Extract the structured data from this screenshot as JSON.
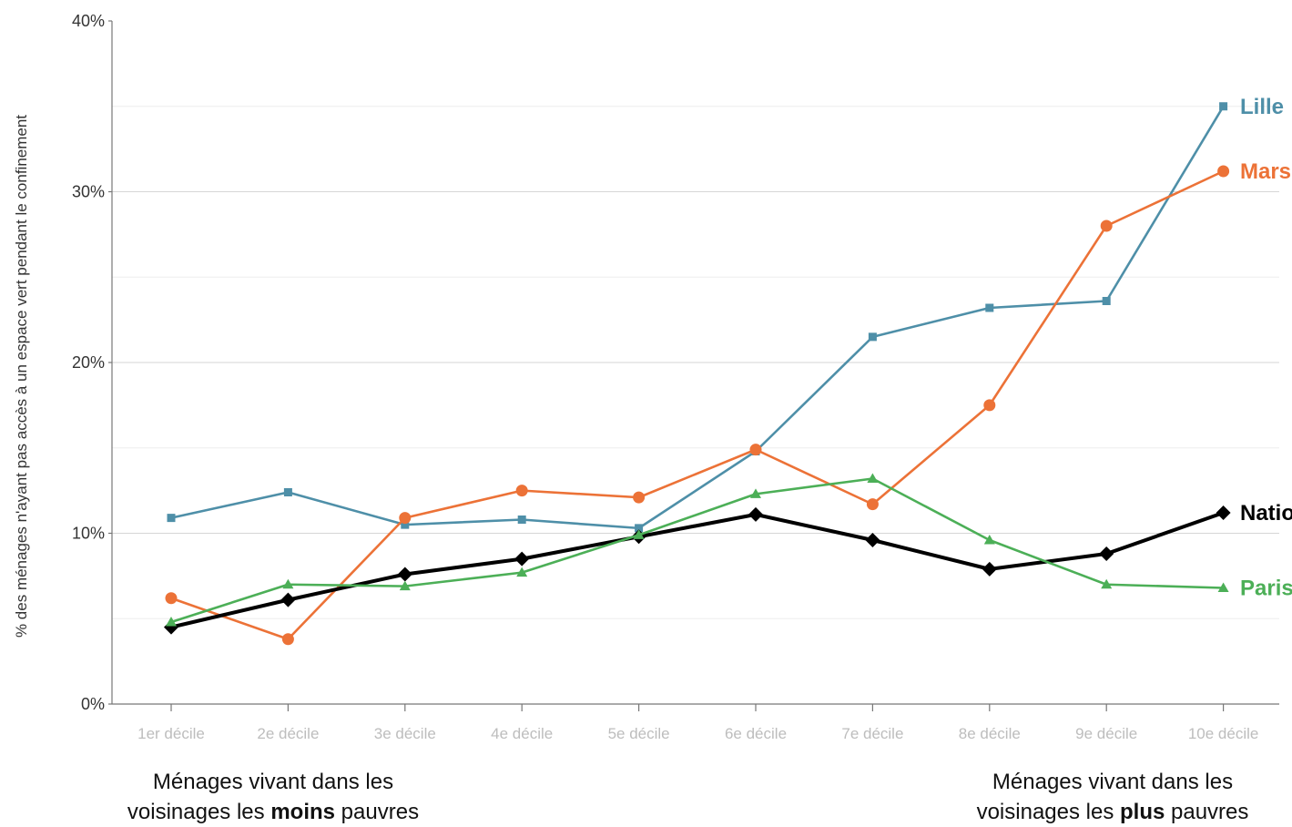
{
  "chart_data": {
    "type": "line",
    "ylabel": "% des ménages n'ayant pas accès à un espace vert pendant le confinement",
    "ylim": [
      0,
      40
    ],
    "yticks": [
      "0%",
      "10%",
      "20%",
      "30%",
      "40%"
    ],
    "categories": [
      "1er décile",
      "2e décile",
      "3e décile",
      "4e décile",
      "5e décile",
      "6e décile",
      "7e décile",
      "8e décile",
      "9e décile",
      "10e décile"
    ],
    "grid": true,
    "series": [
      {
        "name": "Lille",
        "color": "#4e8fa8",
        "marker": "square",
        "values": [
          10.9,
          12.4,
          10.5,
          10.8,
          10.3,
          14.8,
          21.5,
          23.2,
          23.6,
          35.0
        ]
      },
      {
        "name": "Mars",
        "color": "#ec7237",
        "marker": "circle",
        "values": [
          6.2,
          3.8,
          10.9,
          12.5,
          12.1,
          14.9,
          11.7,
          17.5,
          28.0,
          31.2
        ]
      },
      {
        "name": "Natio",
        "color": "#000000",
        "marker": "diamond",
        "values": [
          4.5,
          6.1,
          7.6,
          8.5,
          9.8,
          11.1,
          9.6,
          7.9,
          8.8,
          11.2
        ]
      },
      {
        "name": "Paris",
        "color": "#4caf57",
        "marker": "triangle",
        "values": [
          4.8,
          7.0,
          6.9,
          7.7,
          9.9,
          12.3,
          13.2,
          9.6,
          7.0,
          6.8
        ]
      }
    ]
  },
  "annotations": {
    "left": {
      "line1": "Ménages vivant dans les",
      "line2_prefix": "voisinages les ",
      "line2_bold": "moins",
      "line2_suffix": " pauvres"
    },
    "right": {
      "line1": "Ménages vivant dans les",
      "line2_prefix": "voisinages les ",
      "line2_bold": "plus",
      "line2_suffix": " pauvres"
    }
  }
}
